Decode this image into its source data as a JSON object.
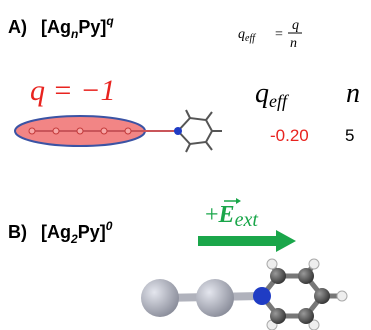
{
  "panel_a": {
    "label": "A)",
    "formula": {
      "base": "[Ag",
      "subscript": "n",
      "middle": "Py]",
      "superscript": "q"
    },
    "definition": {
      "symbol": "q",
      "symbol_subscript": "eff",
      "equals": "=",
      "numerator": "q",
      "denominator": "n"
    },
    "charge_label": "q = −1",
    "table": {
      "headers": [
        {
          "symbol": "q",
          "subscript": "eff"
        },
        "n"
      ],
      "row": [
        "-0.20",
        "5"
      ]
    }
  },
  "panel_b": {
    "label": "B)",
    "formula": {
      "base": "[Ag",
      "subscript": "2",
      "middle": "Py]",
      "superscript": "0"
    },
    "field": {
      "sign": "+",
      "symbol": "E",
      "subscript": "ext"
    }
  }
}
